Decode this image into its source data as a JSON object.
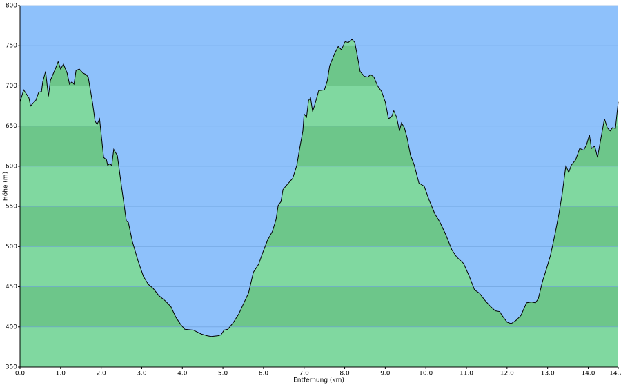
{
  "chart_data": {
    "type": "area",
    "xlabel": "Entfernung  (km)",
    "ylabel": "Höhe (m)",
    "x": [
      0,
      0.09,
      0.22,
      0.26,
      0.39,
      0.46,
      0.53,
      0.56,
      0.63,
      0.7,
      0.75,
      0.87,
      0.94,
      1.0,
      1.07,
      1.16,
      1.22,
      1.28,
      1.33,
      1.38,
      1.46,
      1.55,
      1.63,
      1.68,
      1.79,
      1.85,
      1.9,
      1.96,
      2.01,
      2.06,
      2.13,
      2.16,
      2.21,
      2.26,
      2.31,
      2.4,
      2.5,
      2.62,
      2.67,
      2.77,
      2.91,
      3.04,
      3.16,
      3.28,
      3.42,
      3.59,
      3.72,
      3.84,
      3.96,
      4.06,
      4.27,
      4.47,
      4.61,
      4.71,
      4.88,
      4.95,
      5.03,
      5.12,
      5.25,
      5.39,
      5.49,
      5.63,
      5.75,
      5.88,
      5.97,
      6.1,
      6.22,
      6.31,
      6.36,
      6.43,
      6.48,
      6.58,
      6.72,
      6.82,
      6.89,
      6.97,
      7.0,
      7.06,
      7.11,
      7.16,
      7.21,
      7.26,
      7.36,
      7.5,
      7.57,
      7.63,
      7.75,
      7.84,
      7.92,
      8.01,
      8.09,
      8.18,
      8.25,
      8.31,
      8.38,
      8.48,
      8.57,
      8.64,
      8.72,
      8.81,
      8.91,
      9.0,
      9.08,
      9.16,
      9.21,
      9.28,
      9.35,
      9.4,
      9.47,
      9.54,
      9.62,
      9.71,
      9.83,
      9.96,
      10.08,
      10.22,
      10.35,
      10.49,
      10.64,
      10.76,
      10.93,
      11.07,
      11.2,
      11.32,
      11.44,
      11.58,
      11.71,
      11.82,
      11.88,
      12.0,
      12.1,
      12.22,
      12.34,
      12.48,
      12.6,
      12.7,
      12.77,
      12.87,
      12.97,
      13.07,
      13.18,
      13.28,
      13.36,
      13.45,
      13.52,
      13.58,
      13.69,
      13.79,
      13.89,
      13.96,
      14.03,
      14.08,
      14.16,
      14.23,
      14.3,
      14.4,
      14.47,
      14.54,
      14.6,
      14.67,
      14.74
    ],
    "values": [
      680,
      695,
      685,
      675,
      682,
      692,
      693,
      705,
      718,
      687,
      707,
      721,
      730,
      721,
      727,
      716,
      702,
      705,
      702,
      719,
      721,
      716,
      714,
      711,
      678,
      656,
      652,
      659,
      635,
      611,
      608,
      601,
      603,
      601,
      621,
      613,
      575,
      532,
      530,
      506,
      482,
      463,
      453,
      448,
      439,
      432,
      425,
      412,
      403,
      397,
      396,
      391,
      389,
      388,
      389,
      390,
      396,
      397,
      405,
      416,
      427,
      442,
      468,
      478,
      491,
      508,
      519,
      534,
      551,
      556,
      571,
      577,
      585,
      601,
      622,
      644,
      665,
      661,
      682,
      685,
      668,
      676,
      694,
      695,
      706,
      725,
      740,
      749,
      745,
      755,
      754,
      758,
      754,
      738,
      718,
      712,
      711,
      714,
      711,
      700,
      693,
      680,
      659,
      662,
      669,
      661,
      644,
      654,
      648,
      635,
      614,
      602,
      579,
      575,
      558,
      541,
      530,
      515,
      496,
      487,
      479,
      463,
      446,
      442,
      434,
      426,
      420,
      419,
      414,
      406,
      404,
      408,
      414,
      430,
      431,
      430,
      435,
      456,
      472,
      489,
      515,
      541,
      566,
      601,
      592,
      601,
      608,
      622,
      620,
      627,
      639,
      622,
      625,
      611,
      631,
      659,
      648,
      644,
      648,
      647,
      680
    ],
    "xlim": [
      0,
      14.74
    ],
    "xticks": [
      {
        "value": 0,
        "label": "0.0"
      },
      {
        "value": 1,
        "label": "1.0"
      },
      {
        "value": 2,
        "label": "2.0"
      },
      {
        "value": 3,
        "label": "3.0"
      },
      {
        "value": 4,
        "label": "4.0"
      },
      {
        "value": 5,
        "label": "5.0"
      },
      {
        "value": 6,
        "label": "6.0"
      },
      {
        "value": 7,
        "label": "7.0"
      },
      {
        "value": 8,
        "label": "8.0"
      },
      {
        "value": 9,
        "label": "9.0"
      },
      {
        "value": 10,
        "label": "10.0"
      },
      {
        "value": 11,
        "label": "11.0"
      },
      {
        "value": 12,
        "label": "12.0"
      },
      {
        "value": 13,
        "label": "13.0"
      },
      {
        "value": 14,
        "label": "14.0"
      },
      14.74
    ],
    "ylim": [
      350,
      800
    ],
    "yticks": [
      350,
      400,
      450,
      500,
      550,
      600,
      650,
      700,
      750,
      800
    ],
    "grid": true,
    "color": "#000000",
    "background": "#8ec1fb",
    "band_colors": [
      "#80d8a0",
      "#6dc68a"
    ],
    "grid_color": "#6a9fd8"
  }
}
